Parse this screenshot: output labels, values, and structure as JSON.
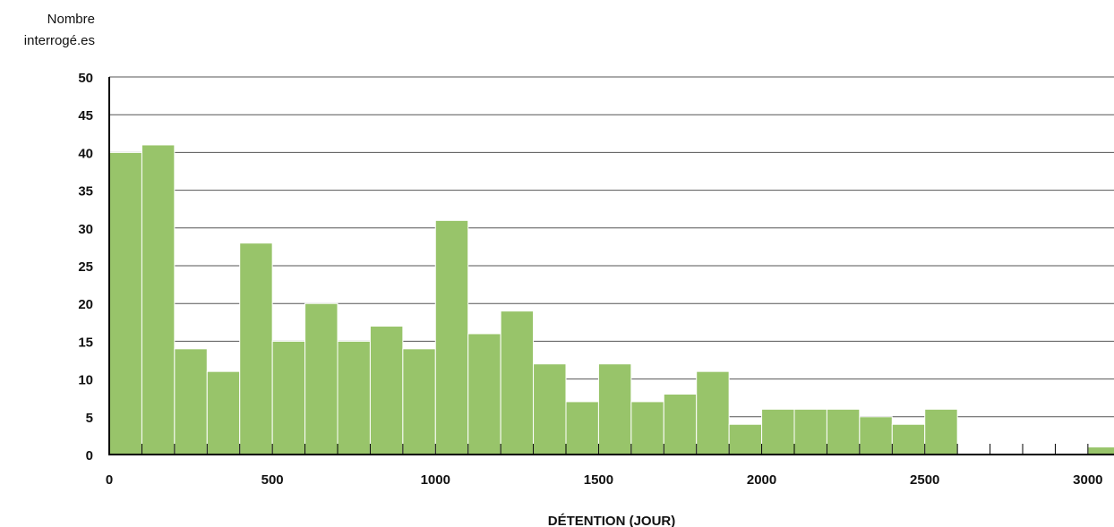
{
  "chart_data": {
    "type": "bar",
    "ylabel_line1": "Nombre",
    "ylabel_line2": "interrogé.es",
    "xlabel": "DÉTENTION (JOUR)",
    "bar_color": "#98c46a",
    "grid_color": "#555555",
    "bin_width": 100,
    "x": [
      0,
      100,
      200,
      300,
      400,
      500,
      600,
      700,
      800,
      900,
      1000,
      1100,
      1200,
      1300,
      1400,
      1500,
      1600,
      1700,
      1800,
      1900,
      2000,
      2100,
      2200,
      2300,
      2400,
      2500,
      2600,
      2700,
      2800,
      2900,
      3000
    ],
    "values": [
      40,
      41,
      14,
      11,
      28,
      15,
      20,
      15,
      17,
      14,
      31,
      16,
      19,
      12,
      7,
      12,
      7,
      8,
      11,
      4,
      6,
      6,
      6,
      5,
      4,
      6,
      0,
      0,
      0,
      0,
      1
    ],
    "xlim": [
      0,
      3080
    ],
    "ylim": [
      0,
      50
    ],
    "y_ticks": [
      "0",
      "5",
      "10",
      "15",
      "20",
      "25",
      "30",
      "35",
      "40",
      "45",
      "50"
    ],
    "x_ticks": [
      "0",
      "500",
      "1000",
      "1500",
      "2000",
      "2500",
      "3000"
    ],
    "grid": true
  }
}
